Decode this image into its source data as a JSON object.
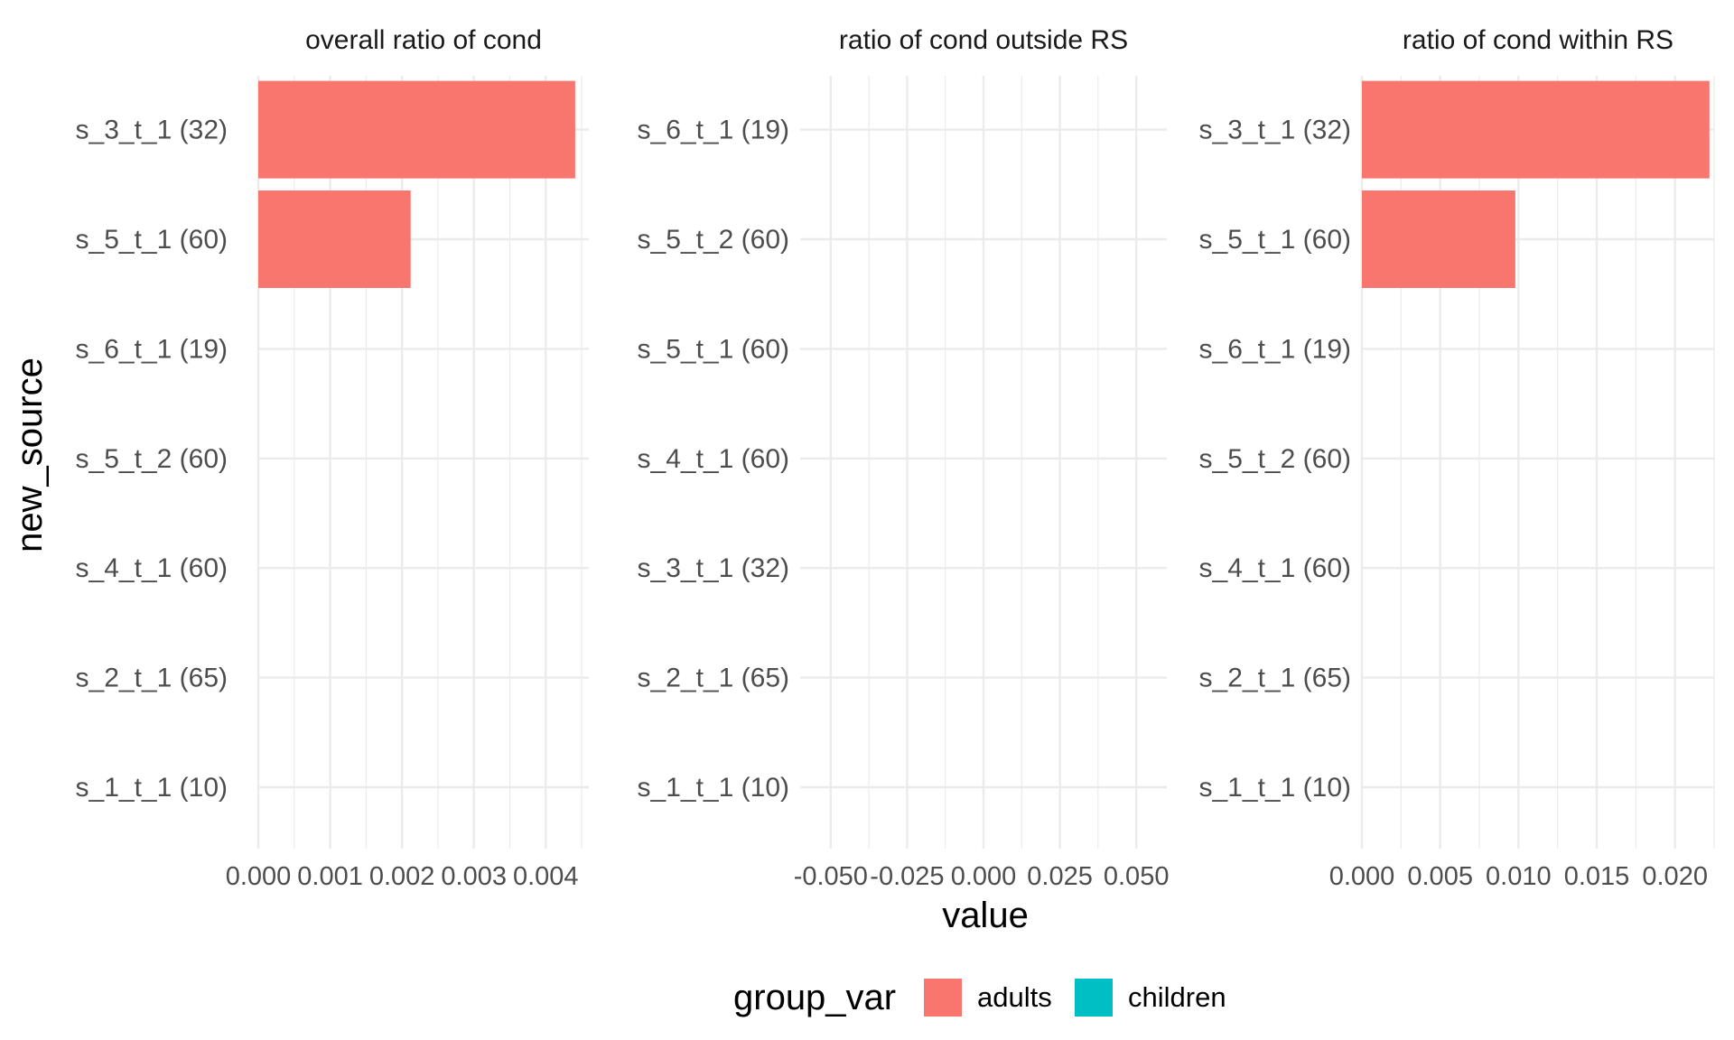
{
  "chart_data": {
    "type": "bar",
    "orientation": "horizontal",
    "facet": "wrap",
    "xlabel": "value",
    "ylabel": "new_source",
    "grid": true,
    "legend": {
      "title": "group_var",
      "position": "bottom",
      "entries": [
        {
          "name": "adults",
          "color": "#F8766D"
        },
        {
          "name": "children",
          "color": "#00BFC4"
        }
      ]
    },
    "panels": [
      {
        "title": "overall ratio of cond",
        "categories": [
          "s_1_t_1 (10)",
          "s_2_t_1 (65)",
          "s_4_t_1 (60)",
          "s_5_t_2 (60)",
          "s_6_t_1 (19)",
          "s_5_t_1 (60)",
          "s_3_t_1 (32)"
        ],
        "xlim": [
          0,
          0.0046
        ],
        "xticks": [
          0,
          0.001,
          0.002,
          0.003,
          0.004
        ],
        "xtick_labels": [
          "0.000",
          "0.001",
          "0.002",
          "0.003",
          "0.004"
        ],
        "series": [
          {
            "name": "adults",
            "color": "#F8766D",
            "values": [
              0,
              0,
              0,
              0,
              0,
              0.00212,
              0.00441
            ]
          },
          {
            "name": "children",
            "color": "#00BFC4",
            "values": [
              0,
              0,
              0,
              0,
              0,
              0,
              0
            ]
          }
        ]
      },
      {
        "title": "ratio of cond outside RS",
        "categories": [
          "s_1_t_1 (10)",
          "s_2_t_1 (65)",
          "s_3_t_1 (32)",
          "s_4_t_1 (60)",
          "s_5_t_1 (60)",
          "s_5_t_2 (60)",
          "s_6_t_1 (19)"
        ],
        "xlim": [
          -0.06,
          0.06
        ],
        "xticks": [
          -0.05,
          -0.025,
          0,
          0.025,
          0.05
        ],
        "xtick_labels": [
          "-0.050",
          "-0.025",
          "0.000",
          "0.025",
          "0.050"
        ],
        "series": [
          {
            "name": "adults",
            "color": "#F8766D",
            "values": [
              0,
              0,
              0,
              0,
              0,
              0,
              0
            ]
          },
          {
            "name": "children",
            "color": "#00BFC4",
            "values": [
              0,
              0,
              0,
              0,
              0,
              0,
              0
            ]
          }
        ]
      },
      {
        "title": "ratio of cond within RS",
        "categories": [
          "s_1_t_1 (10)",
          "s_2_t_1 (65)",
          "s_4_t_1 (60)",
          "s_5_t_2 (60)",
          "s_6_t_1 (19)",
          "s_5_t_1 (60)",
          "s_3_t_1 (32)"
        ],
        "xlim": [
          0,
          0.0225
        ],
        "xticks": [
          0,
          0.005,
          0.01,
          0.015,
          0.02
        ],
        "xtick_labels": [
          "0.000",
          "0.005",
          "0.010",
          "0.015",
          "0.020"
        ],
        "series": [
          {
            "name": "adults",
            "color": "#F8766D",
            "values": [
              0,
              0,
              0,
              0,
              0,
              0.0098,
              0.0222
            ]
          },
          {
            "name": "children",
            "color": "#00BFC4",
            "values": [
              0,
              0,
              0,
              0,
              0,
              0,
              0
            ]
          }
        ]
      }
    ]
  }
}
